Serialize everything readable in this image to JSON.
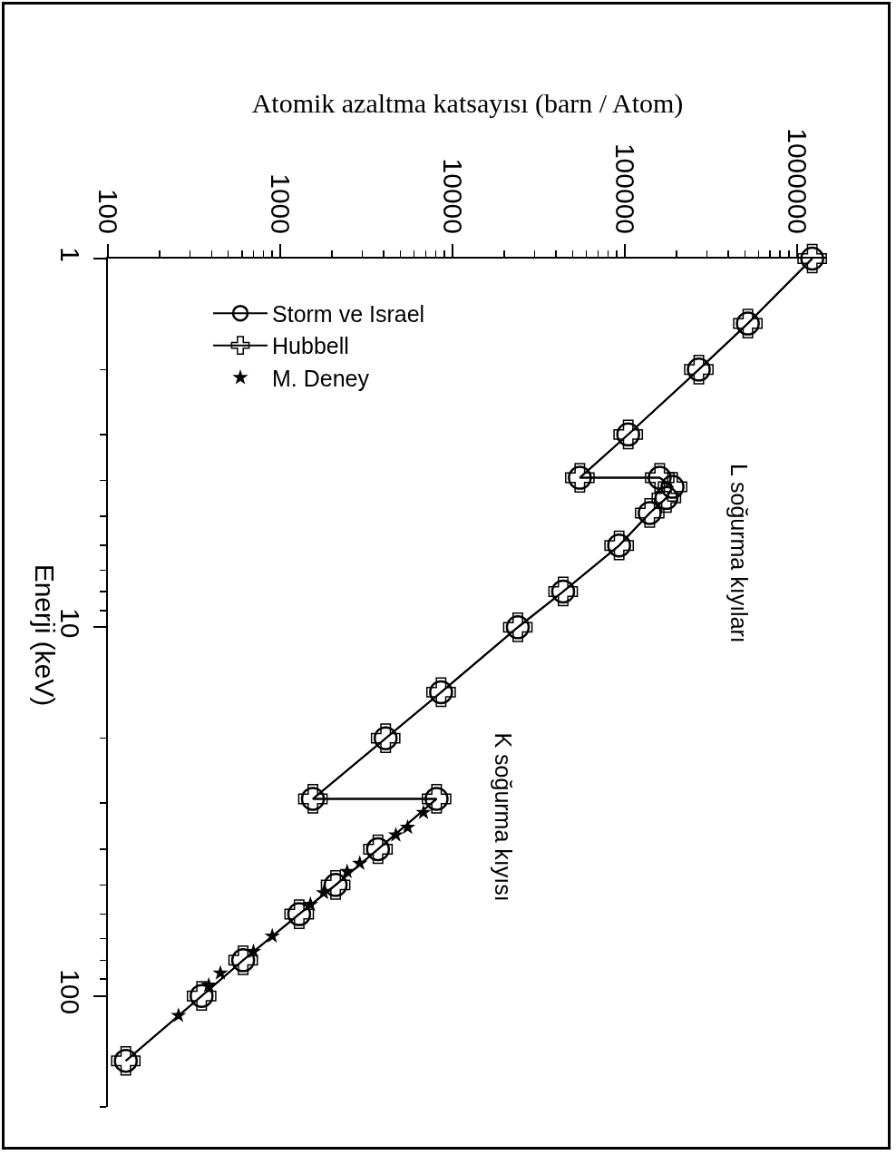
{
  "chart_data": {
    "type": "line",
    "xlabel": "Atomik azaltma katsayısı (barn / Atom)",
    "ylabel": "Enerji (keV)",
    "log": "xy",
    "grid": false,
    "legend": "top left",
    "xlim": [
      100,
      1500000
    ],
    "xticks": [
      100,
      1000,
      10000,
      100000,
      1000000
    ],
    "ylim": [
      200,
      1
    ],
    "yticks": [
      1,
      10,
      100
    ],
    "annotations": [
      "L soğurma kıyıları",
      "K soğurma kıyısı"
    ],
    "series": [
      {
        "name": "Storm ve Israel",
        "type": "line",
        "marker": "circle",
        "line_style": "solid",
        "color": "#000000",
        "x": [
          1230000,
          520000,
          270000,
          105000,
          55000,
          160000,
          190000,
          175000,
          140000,
          93000,
          44000,
          24000,
          8600,
          4100,
          1550,
          8100,
          3700,
          2100,
          1290,
          610,
          350,
          127
        ],
        "values": [
          1,
          1.5,
          2,
          3,
          3.93,
          3.93,
          4.16,
          4.46,
          4.9,
          6,
          8,
          10,
          15,
          20,
          29.2,
          29.2,
          40,
          50,
          60,
          80,
          100,
          150
        ]
      },
      {
        "name": "Hubbell",
        "type": "line",
        "marker": "cross",
        "line_style": "solid",
        "color": "#000000",
        "x": [
          1230000,
          520000,
          270000,
          105000,
          55000,
          160000,
          190000,
          175000,
          140000,
          93000,
          44000,
          24000,
          8600,
          4100,
          1550,
          8100,
          3700,
          2100,
          1290,
          610,
          350,
          127
        ],
        "values": [
          1,
          1.5,
          2,
          3,
          3.93,
          3.93,
          4.16,
          4.46,
          4.9,
          6,
          8,
          10,
          15,
          20,
          29.2,
          29.2,
          40,
          50,
          60,
          80,
          100,
          150
        ]
      },
      {
        "name": "M. Deney",
        "type": "scatter",
        "marker": "star",
        "color": "#000000",
        "x": [
          6800,
          5500,
          4700,
          2900,
          2450,
          1790,
          1500,
          900,
          700,
          450,
          385,
          257
        ],
        "values": [
          31.8,
          34.9,
          36.6,
          43.7,
          46,
          52.5,
          56.5,
          68.8,
          75.8,
          86.7,
          93.5,
          113
        ]
      }
    ]
  }
}
